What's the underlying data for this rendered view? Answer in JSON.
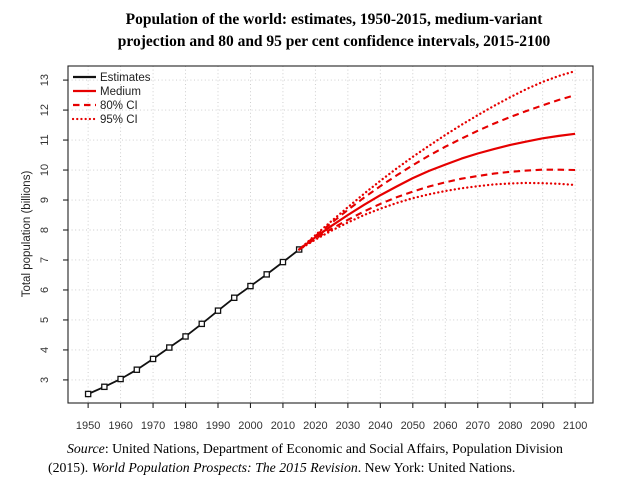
{
  "title": {
    "line1": "Population of the world: estimates, 1950-2015, medium-variant",
    "line2": "projection and 80 and 95 per cent confidence intervals, 2015-2100"
  },
  "source": {
    "source_word": "Source",
    "line1_rest": ": United Nations, Department of Economic and Social Affairs, Population Division",
    "line2_pre": "(2015). ",
    "line2_italic": "World Population Prospects: The 2015 Revision",
    "line2_post": ". New York: United Nations."
  },
  "colors": {
    "projection_red": "#e60000",
    "estimates_black": "#111111",
    "grid": "#c9c9c9",
    "axis": "#222222",
    "tick_text": "#333333"
  },
  "chart_data": {
    "type": "line",
    "title": "Population of the world: estimates, 1950-2015, medium-variant projection and 80 and 95 per cent confidence intervals, 2015-2100",
    "xlabel": "",
    "ylabel": "Total population (billions)",
    "xlim": [
      1943.8,
      2105.5
    ],
    "ylim": [
      2.23,
      13.47
    ],
    "x_ticks": [
      1950,
      1960,
      1970,
      1980,
      1990,
      2000,
      2010,
      2020,
      2030,
      2040,
      2050,
      2060,
      2070,
      2080,
      2090,
      2100
    ],
    "y_ticks": [
      3,
      4,
      5,
      6,
      7,
      8,
      9,
      10,
      11,
      12,
      13
    ],
    "grid": "dotted",
    "legend": {
      "position": "top-left",
      "items": [
        {
          "label": "Estimates",
          "color": "#111111",
          "style": "solid"
        },
        {
          "label": "Medium",
          "color": "#e60000",
          "style": "solid"
        },
        {
          "label": "80% CI",
          "color": "#e60000",
          "style": "dashed"
        },
        {
          "label": "95% CI",
          "color": "#e60000",
          "style": "dotted"
        }
      ]
    },
    "series": [
      {
        "name": "Estimates",
        "color": "#111111",
        "style": "solid",
        "width": 1.8,
        "marker": "open-square",
        "x": [
          1950,
          1955,
          1960,
          1965,
          1970,
          1975,
          1980,
          1985,
          1990,
          1995,
          2000,
          2005,
          2010,
          2015
        ],
        "y": [
          2.53,
          2.77,
          3.03,
          3.34,
          3.7,
          4.08,
          4.45,
          4.87,
          5.31,
          5.74,
          6.13,
          6.52,
          6.93,
          7.35
        ]
      },
      {
        "name": "Medium",
        "color": "#e60000",
        "style": "solid",
        "width": 2.2,
        "marker": "none",
        "x": [
          2015,
          2020,
          2025,
          2030,
          2035,
          2040,
          2045,
          2050,
          2055,
          2060,
          2065,
          2070,
          2075,
          2080,
          2085,
          2090,
          2095,
          2100
        ],
        "y": [
          7.35,
          7.76,
          8.14,
          8.5,
          8.84,
          9.16,
          9.45,
          9.73,
          9.97,
          10.18,
          10.38,
          10.55,
          10.7,
          10.84,
          10.95,
          11.06,
          11.14,
          11.21
        ]
      },
      {
        "name": "80% CI upper",
        "color": "#e60000",
        "style": "dashed",
        "width": 2.1,
        "marker": "none",
        "x": [
          2015,
          2020,
          2025,
          2030,
          2035,
          2040,
          2045,
          2050,
          2055,
          2060,
          2065,
          2070,
          2075,
          2080,
          2085,
          2090,
          2095,
          2100
        ],
        "y": [
          7.35,
          7.8,
          8.24,
          8.67,
          9.08,
          9.46,
          9.82,
          10.16,
          10.48,
          10.78,
          11.05,
          11.31,
          11.55,
          11.77,
          11.97,
          12.16,
          12.34,
          12.5
        ]
      },
      {
        "name": "80% CI lower",
        "color": "#e60000",
        "style": "dashed",
        "width": 2.1,
        "marker": "none",
        "x": [
          2015,
          2020,
          2025,
          2030,
          2035,
          2040,
          2045,
          2050,
          2055,
          2060,
          2065,
          2070,
          2075,
          2080,
          2085,
          2090,
          2095,
          2100
        ],
        "y": [
          7.35,
          7.71,
          8.04,
          8.34,
          8.62,
          8.87,
          9.09,
          9.28,
          9.45,
          9.59,
          9.71,
          9.8,
          9.88,
          9.94,
          9.98,
          10.01,
          10.01,
          10.0
        ]
      },
      {
        "name": "95% CI upper",
        "color": "#e60000",
        "style": "dotted",
        "width": 2.3,
        "marker": "none",
        "x": [
          2015,
          2020,
          2025,
          2030,
          2035,
          2040,
          2045,
          2050,
          2055,
          2060,
          2065,
          2070,
          2075,
          2080,
          2085,
          2090,
          2095,
          2100
        ],
        "y": [
          7.35,
          7.83,
          8.3,
          8.76,
          9.21,
          9.64,
          10.05,
          10.44,
          10.81,
          11.17,
          11.51,
          11.83,
          12.14,
          12.43,
          12.7,
          12.94,
          13.14,
          13.3
        ]
      },
      {
        "name": "95% CI lower",
        "color": "#e60000",
        "style": "dotted",
        "width": 2.3,
        "marker": "none",
        "x": [
          2015,
          2020,
          2025,
          2030,
          2035,
          2040,
          2045,
          2050,
          2055,
          2060,
          2065,
          2070,
          2075,
          2080,
          2085,
          2090,
          2095,
          2100
        ],
        "y": [
          7.35,
          7.68,
          7.98,
          8.25,
          8.5,
          8.71,
          8.9,
          9.06,
          9.19,
          9.3,
          9.39,
          9.46,
          9.52,
          9.55,
          9.57,
          9.56,
          9.54,
          9.5
        ]
      }
    ]
  }
}
